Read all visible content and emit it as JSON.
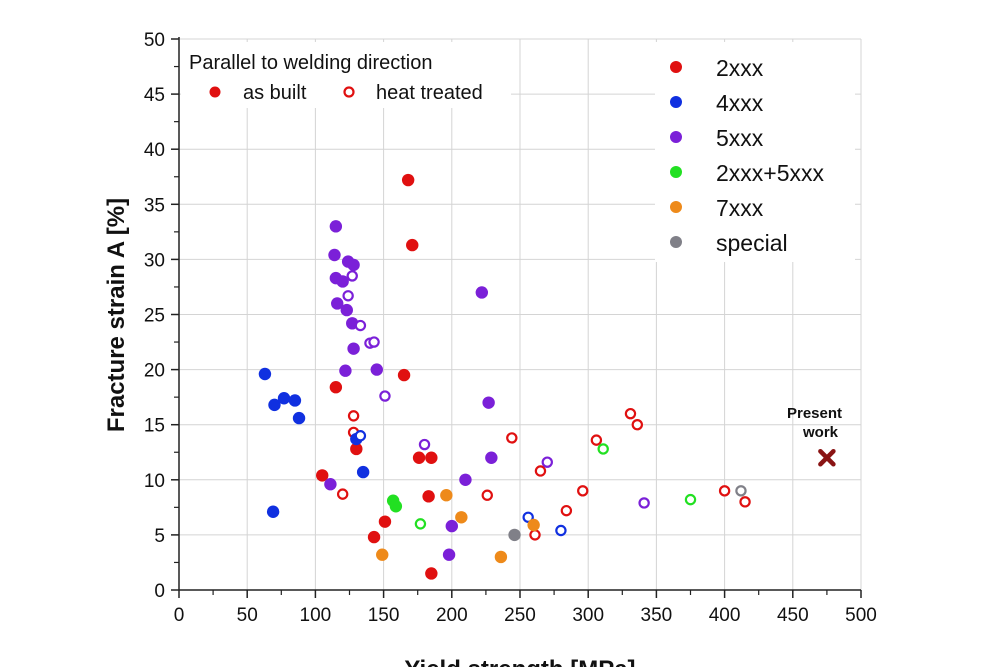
{
  "chart_data": {
    "type": "scatter",
    "title": "",
    "xlabel": "Yield strength [MPa]",
    "ylabel": "Fracture strain A [%]",
    "xlim": [
      0,
      500
    ],
    "ylim": [
      0,
      50
    ],
    "xticks": [
      "0",
      "50",
      "100",
      "150",
      "200",
      "250",
      "300",
      "350",
      "400",
      "450",
      "500"
    ],
    "yticks": [
      "0",
      "5",
      "10",
      "15",
      "20",
      "25",
      "30",
      "35",
      "40",
      "45",
      "50"
    ],
    "grid": true,
    "legend_parallel": {
      "title": "Parallel to welding direction",
      "as_built": "as built",
      "heat_treated": "heat treated"
    },
    "legend_position": "top-right",
    "annotation": {
      "line1": "Present",
      "line2": "work",
      "x": 475,
      "y": 12
    },
    "series": [
      {
        "name": "2xxx",
        "color": "#e01010",
        "filled": [
          [
            168,
            37.2
          ],
          [
            171,
            31.3
          ],
          [
            115,
            18.4
          ],
          [
            165,
            19.5
          ],
          [
            105,
            10.4
          ],
          [
            130,
            12.8
          ],
          [
            176,
            12
          ],
          [
            185,
            12
          ],
          [
            183,
            8.5
          ],
          [
            151,
            6.2
          ],
          [
            143,
            4.8
          ],
          [
            185,
            1.5
          ]
        ],
        "open": [
          [
            128,
            15.8
          ],
          [
            128,
            14.3
          ],
          [
            120,
            8.7
          ],
          [
            226,
            8.6
          ],
          [
            244,
            13.8
          ],
          [
            265,
            10.8
          ],
          [
            284,
            7.2
          ],
          [
            296,
            9
          ],
          [
            306,
            13.6
          ],
          [
            331,
            16
          ],
          [
            336,
            15
          ],
          [
            261,
            5
          ],
          [
            400,
            9
          ],
          [
            415,
            8
          ]
        ]
      },
      {
        "name": "4xxx",
        "color": "#1030e0",
        "filled": [
          [
            63,
            19.6
          ],
          [
            70,
            16.8
          ],
          [
            77,
            17.4
          ],
          [
            85,
            17.2
          ],
          [
            88,
            15.6
          ],
          [
            69,
            7.1
          ],
          [
            130,
            13.7
          ],
          [
            135,
            10.7
          ]
        ],
        "open": [
          [
            133,
            14
          ],
          [
            256,
            6.6
          ],
          [
            280,
            5.4
          ]
        ]
      },
      {
        "name": "5xxx",
        "color": "#7b20d8",
        "filled": [
          [
            115,
            33
          ],
          [
            114,
            30.4
          ],
          [
            115,
            28.3
          ],
          [
            120,
            28
          ],
          [
            124,
            29.8
          ],
          [
            128,
            29.5
          ],
          [
            116,
            26
          ],
          [
            123,
            25.4
          ],
          [
            127,
            24.2
          ],
          [
            128,
            21.9
          ],
          [
            122,
            19.9
          ],
          [
            145,
            20
          ],
          [
            222,
            27
          ],
          [
            227,
            17
          ],
          [
            229,
            12
          ],
          [
            210,
            10
          ],
          [
            111,
            9.6
          ],
          [
            198,
            3.2
          ],
          [
            200,
            5.8
          ]
        ],
        "open": [
          [
            127,
            28.5
          ],
          [
            124,
            26.7
          ],
          [
            133,
            24
          ],
          [
            140,
            22.4
          ],
          [
            143,
            22.5
          ],
          [
            151,
            17.6
          ],
          [
            180,
            13.2
          ],
          [
            270,
            11.6
          ],
          [
            341,
            7.9
          ]
        ]
      },
      {
        "name": "2xxx+5xxx",
        "color": "#22e022",
        "filled": [
          [
            157,
            8.1
          ],
          [
            159,
            7.6
          ]
        ],
        "open": [
          [
            177,
            6
          ],
          [
            311,
            12.8
          ],
          [
            375,
            8.2
          ]
        ]
      },
      {
        "name": "7xxx",
        "color": "#ee8a1a",
        "filled": [
          [
            196,
            8.6
          ],
          [
            207,
            6.6
          ],
          [
            260,
            5.9
          ],
          [
            149,
            3.2
          ],
          [
            236,
            3
          ]
        ],
        "open": []
      },
      {
        "name": "special",
        "color": "#808088",
        "filled": [
          [
            246,
            5
          ]
        ],
        "open": [
          [
            412,
            9
          ]
        ]
      }
    ]
  }
}
